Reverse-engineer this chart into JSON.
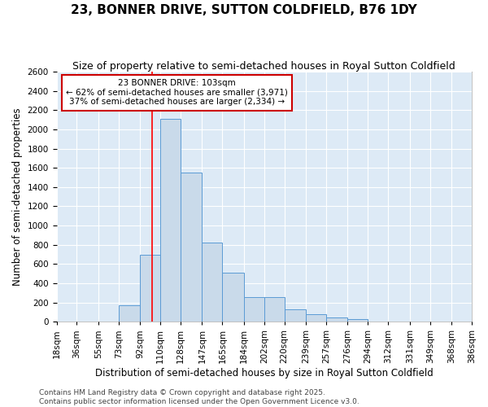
{
  "title": "23, BONNER DRIVE, SUTTON COLDFIELD, B76 1DY",
  "subtitle": "Size of property relative to semi-detached houses in Royal Sutton Coldfield",
  "xlabel": "Distribution of semi-detached houses by size in Royal Sutton Coldfield",
  "ylabel": "Number of semi-detached properties",
  "footer1": "Contains HM Land Registry data © Crown copyright and database right 2025.",
  "footer2": "Contains public sector information licensed under the Open Government Licence v3.0.",
  "bins": [
    18,
    36,
    55,
    73,
    92,
    110,
    128,
    147,
    165,
    184,
    202,
    220,
    239,
    257,
    276,
    294,
    312,
    331,
    349,
    368,
    386
  ],
  "bin_labels": [
    "18sqm",
    "36sqm",
    "55sqm",
    "73sqm",
    "92sqm",
    "110sqm",
    "128sqm",
    "147sqm",
    "165sqm",
    "184sqm",
    "202sqm",
    "220sqm",
    "239sqm",
    "257sqm",
    "276sqm",
    "294sqm",
    "312sqm",
    "331sqm",
    "349sqm",
    "368sqm",
    "386sqm"
  ],
  "values": [
    0,
    0,
    0,
    175,
    700,
    2110,
    1550,
    825,
    510,
    255,
    255,
    130,
    75,
    45,
    25,
    0,
    0,
    0,
    0,
    0,
    0
  ],
  "bar_color": "#c9daea",
  "bar_edge_color": "#5b9bd5",
  "red_line_x": 103,
  "ylim": [
    0,
    2600
  ],
  "yticks": [
    0,
    200,
    400,
    600,
    800,
    1000,
    1200,
    1400,
    1600,
    1800,
    2000,
    2200,
    2400,
    2600
  ],
  "annotation_title": "23 BONNER DRIVE: 103sqm",
  "annotation_line1": "← 62% of semi-detached houses are smaller (3,971)",
  "annotation_line2": "37% of semi-detached houses are larger (2,334) →",
  "box_color": "#ffffff",
  "box_edge_color": "#cc0000",
  "title_fontsize": 11,
  "subtitle_fontsize": 9,
  "axis_label_fontsize": 8.5,
  "tick_fontsize": 7.5,
  "annotation_fontsize": 7.5,
  "footer_fontsize": 6.5,
  "bg_color": "#ddeaf6"
}
